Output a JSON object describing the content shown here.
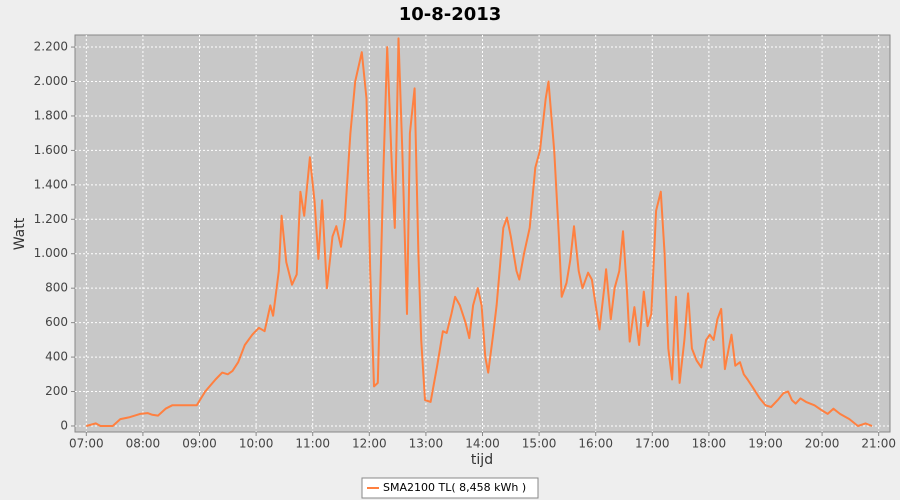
{
  "chart_data": {
    "type": "line",
    "title": "10-8-2013",
    "x_label": "tijd",
    "y_label": "Watt",
    "xlim": [
      "06:48",
      "21:12"
    ],
    "xticks": [
      "07:00",
      "08:00",
      "09:00",
      "10:00",
      "11:00",
      "12:00",
      "13:00",
      "14:00",
      "15:00",
      "16:00",
      "17:00",
      "18:00",
      "19:00",
      "20:00",
      "21:00"
    ],
    "ylim": [
      -35,
      2270
    ],
    "yticks": [
      0,
      200,
      400,
      600,
      800,
      {
        "value": 1000,
        "label": "1.000"
      },
      {
        "value": 1200,
        "label": "1.200"
      },
      {
        "value": 1400,
        "label": "1.400"
      },
      {
        "value": 1600,
        "label": "1.600"
      },
      {
        "value": 1800,
        "label": "1.800"
      },
      {
        "value": 2000,
        "label": "2.000"
      },
      {
        "value": 2200,
        "label": "2.200"
      }
    ],
    "grid": true,
    "x": [
      "07:00",
      "07:10",
      "07:15",
      "07:28",
      "07:36",
      "07:45",
      "07:57",
      "08:05",
      "08:10",
      "08:16",
      "08:24",
      "08:31",
      "08:50",
      "08:57",
      "09:06",
      "09:17",
      "09:24",
      "09:30",
      "09:35",
      "09:41",
      "09:48",
      "09:56",
      "10:03",
      "10:09",
      "10:15",
      "10:18",
      "10:24",
      "10:27",
      "10:32",
      "10:38",
      "10:43",
      "10:47",
      "10:51",
      "10:57",
      "11:02",
      "11:06",
      "11:10",
      "11:15",
      "11:21",
      "11:25",
      "11:30",
      "11:34",
      "11:40",
      "11:45",
      "11:52",
      "11:57",
      "12:01",
      "12:05",
      "12:09",
      "12:15",
      "12:19",
      "12:24",
      "12:27",
      "12:31",
      "12:35",
      "12:40",
      "12:43",
      "12:48",
      "12:52",
      "12:55",
      "12:59",
      "13:05",
      "13:12",
      "13:18",
      "13:22",
      "13:27",
      "13:31",
      "13:36",
      "13:42",
      "13:46",
      "13:50",
      "13:55",
      "13:59",
      "14:03",
      "14:06",
      "14:11",
      "14:15",
      "14:22",
      "14:26",
      "14:30",
      "14:36",
      "14:39",
      "14:44",
      "14:50",
      "14:56",
      "15:01",
      "15:07",
      "15:10",
      "15:16",
      "15:21",
      "15:24",
      "15:29",
      "15:33",
      "15:37",
      "15:42",
      "15:46",
      "15:52",
      "15:56",
      "16:00",
      "16:04",
      "16:09",
      "16:11",
      "16:16",
      "16:20",
      "16:25",
      "16:29",
      "16:33",
      "16:36",
      "16:41",
      "16:46",
      "16:51",
      "16:55",
      "16:59",
      "17:04",
      "17:09",
      "17:13",
      "17:17",
      "17:21",
      "17:25",
      "17:29",
      "17:34",
      "17:38",
      "17:42",
      "17:47",
      "17:52",
      "17:57",
      "18:01",
      "18:05",
      "18:09",
      "18:13",
      "18:17",
      "18:21",
      "18:24",
      "18:28",
      "18:33",
      "18:37",
      "18:41",
      "18:47",
      "18:54",
      "19:00",
      "19:06",
      "19:13",
      "19:19",
      "19:24",
      "19:28",
      "19:32",
      "19:37",
      "19:43",
      "19:52",
      "20:00",
      "20:06",
      "20:12",
      "20:19",
      "20:29",
      "20:38",
      "20:46",
      "20:53"
    ],
    "series": [
      {
        "name": "SMA2100 TL( 8,458 kWh )",
        "color": "#ff8040",
        "values": [
          0,
          15,
          0,
          0,
          40,
          50,
          70,
          75,
          65,
          60,
          100,
          120,
          120,
          120,
          200,
          270,
          310,
          300,
          320,
          370,
          470,
          530,
          570,
          550,
          700,
          640,
          900,
          1220,
          950,
          820,
          880,
          1360,
          1220,
          1560,
          1300,
          970,
          1310,
          800,
          1100,
          1160,
          1040,
          1200,
          1700,
          2000,
          2170,
          1900,
          900,
          230,
          250,
          1500,
          2200,
          1500,
          1150,
          2250,
          1600,
          650,
          1700,
          1960,
          1000,
          500,
          150,
          140,
          350,
          550,
          540,
          650,
          750,
          700,
          600,
          510,
          700,
          800,
          700,
          400,
          310,
          520,
          700,
          1150,
          1210,
          1100,
          900,
          850,
          1000,
          1150,
          1500,
          1600,
          1900,
          2000,
          1600,
          1100,
          750,
          830,
          960,
          1160,
          900,
          800,
          890,
          850,
          700,
          560,
          800,
          910,
          620,
          800,
          900,
          1130,
          800,
          490,
          690,
          470,
          780,
          580,
          650,
          1250,
          1360,
          1000,
          450,
          270,
          750,
          250,
          500,
          770,
          450,
          380,
          340,
          500,
          530,
          500,
          620,
          680,
          330,
          450,
          530,
          350,
          370,
          300,
          270,
          220,
          160,
          120,
          110,
          150,
          190,
          200,
          150,
          130,
          160,
          140,
          120,
          90,
          70,
          100,
          70,
          40,
          0,
          15,
          0
        ]
      }
    ]
  }
}
